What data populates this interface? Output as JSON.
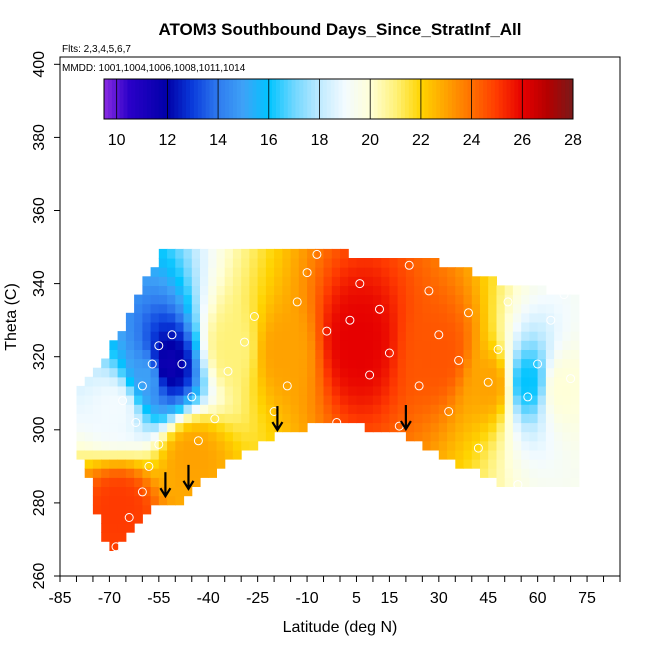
{
  "chart_data": {
    "type": "heatmap",
    "title": "ATOM3 Southbound Days_Since_StratInf_All",
    "notes": [
      "Flts: 2,3,4,5,6,7",
      "MMDD: 1001,1004,1006,1008,1011,1014"
    ],
    "xlabel": "Latitude (deg N)",
    "ylabel": "Theta (C)",
    "xlim": [
      -85,
      85
    ],
    "ylim": [
      260,
      402
    ],
    "x_tick_labels": [
      -85,
      -70,
      -55,
      -40,
      -25,
      -10,
      5,
      15,
      30,
      45,
      60,
      75
    ],
    "y_tick_labels": [
      260,
      280,
      300,
      320,
      340,
      360,
      380,
      400
    ],
    "colorbar": {
      "range": [
        9.5,
        28
      ],
      "tick_labels": [
        10,
        12,
        14,
        16,
        18,
        20,
        22,
        24,
        26,
        28
      ],
      "stops": [
        {
          "v": 9.5,
          "c": "#8a2be2"
        },
        {
          "v": 10.5,
          "c": "#2a00c8"
        },
        {
          "v": 12,
          "c": "#0000a8"
        },
        {
          "v": 13,
          "c": "#0a3cdc"
        },
        {
          "v": 14,
          "c": "#2f7bef"
        },
        {
          "v": 15,
          "c": "#3ea2f7"
        },
        {
          "v": 16,
          "c": "#00c4ff"
        },
        {
          "v": 17,
          "c": "#6fd6ff"
        },
        {
          "v": 18,
          "c": "#bfeaff"
        },
        {
          "v": 19,
          "c": "#f3fbff"
        },
        {
          "v": 20,
          "c": "#ffffd8"
        },
        {
          "v": 21,
          "c": "#fff27a"
        },
        {
          "v": 22,
          "c": "#ffd400"
        },
        {
          "v": 23,
          "c": "#ffa200"
        },
        {
          "v": 24,
          "c": "#ff7000"
        },
        {
          "v": 25,
          "c": "#ff3a00"
        },
        {
          "v": 26,
          "c": "#e60000"
        },
        {
          "v": 27,
          "c": "#b40000"
        },
        {
          "v": 28,
          "c": "#7a1a1a"
        }
      ]
    },
    "arrows_latitude": [
      -53,
      -46,
      -19,
      20
    ],
    "field": {
      "regions": [
        {
          "lat": [
            -72,
            -62
          ],
          "theta": [
            265,
            292
          ],
          "value": 25
        },
        {
          "lat": [
            -76,
            -60
          ],
          "theta": [
            292,
            320
          ],
          "value": 19
        },
        {
          "lat": [
            -64,
            -52
          ],
          "theta": [
            300,
            330
          ],
          "value": 15
        },
        {
          "lat": [
            -58,
            -48
          ],
          "theta": [
            310,
            325
          ],
          "value": 11.5
        },
        {
          "lat": [
            -52,
            -38
          ],
          "theta": [
            280,
            305
          ],
          "value": 23
        },
        {
          "lat": [
            -40,
            -25
          ],
          "theta": [
            300,
            345
          ],
          "value": 21
        },
        {
          "lat": [
            -25,
            -10
          ],
          "theta": [
            298,
            345
          ],
          "value": 23
        },
        {
          "lat": [
            -10,
            20
          ],
          "theta": [
            300,
            348
          ],
          "value": 26
        },
        {
          "lat": [
            20,
            40
          ],
          "theta": [
            296,
            345
          ],
          "value": 24.5
        },
        {
          "lat": [
            40,
            52
          ],
          "theta": [
            285,
            340
          ],
          "value": 23
        },
        {
          "lat": [
            52,
            62
          ],
          "theta": [
            288,
            338
          ],
          "value": 16
        },
        {
          "lat": [
            62,
            72
          ],
          "theta": [
            285,
            338
          ],
          "value": 20
        }
      ]
    },
    "observations": [
      {
        "lat": -68,
        "theta": 268
      },
      {
        "lat": -64,
        "theta": 276
      },
      {
        "lat": -60,
        "theta": 283
      },
      {
        "lat": -58,
        "theta": 290
      },
      {
        "lat": -55,
        "theta": 296
      },
      {
        "lat": -62,
        "theta": 302
      },
      {
        "lat": -66,
        "theta": 308
      },
      {
        "lat": -60,
        "theta": 312
      },
      {
        "lat": -57,
        "theta": 318
      },
      {
        "lat": -55,
        "theta": 323
      },
      {
        "lat": -51,
        "theta": 326
      },
      {
        "lat": -48,
        "theta": 318
      },
      {
        "lat": -45,
        "theta": 309
      },
      {
        "lat": -43,
        "theta": 297
      },
      {
        "lat": -38,
        "theta": 303
      },
      {
        "lat": -34,
        "theta": 316
      },
      {
        "lat": -29,
        "theta": 324
      },
      {
        "lat": -26,
        "theta": 331
      },
      {
        "lat": -24,
        "theta": 292
      },
      {
        "lat": -20,
        "theta": 305
      },
      {
        "lat": -16,
        "theta": 312
      },
      {
        "lat": -13,
        "theta": 335
      },
      {
        "lat": -10,
        "theta": 343
      },
      {
        "lat": -7,
        "theta": 348
      },
      {
        "lat": -4,
        "theta": 327
      },
      {
        "lat": -1,
        "theta": 302
      },
      {
        "lat": 3,
        "theta": 330
      },
      {
        "lat": 6,
        "theta": 340
      },
      {
        "lat": 9,
        "theta": 315
      },
      {
        "lat": 12,
        "theta": 333
      },
      {
        "lat": 15,
        "theta": 321
      },
      {
        "lat": 18,
        "theta": 301
      },
      {
        "lat": 21,
        "theta": 345
      },
      {
        "lat": 24,
        "theta": 312
      },
      {
        "lat": 27,
        "theta": 338
      },
      {
        "lat": 30,
        "theta": 326
      },
      {
        "lat": 33,
        "theta": 305
      },
      {
        "lat": 36,
        "theta": 319
      },
      {
        "lat": 39,
        "theta": 332
      },
      {
        "lat": 42,
        "theta": 295
      },
      {
        "lat": 45,
        "theta": 313
      },
      {
        "lat": 48,
        "theta": 322
      },
      {
        "lat": 51,
        "theta": 335
      },
      {
        "lat": 54,
        "theta": 285
      },
      {
        "lat": 57,
        "theta": 309
      },
      {
        "lat": 60,
        "theta": 318
      },
      {
        "lat": 64,
        "theta": 330
      },
      {
        "lat": 68,
        "theta": 337
      },
      {
        "lat": 70,
        "theta": 314
      }
    ]
  }
}
